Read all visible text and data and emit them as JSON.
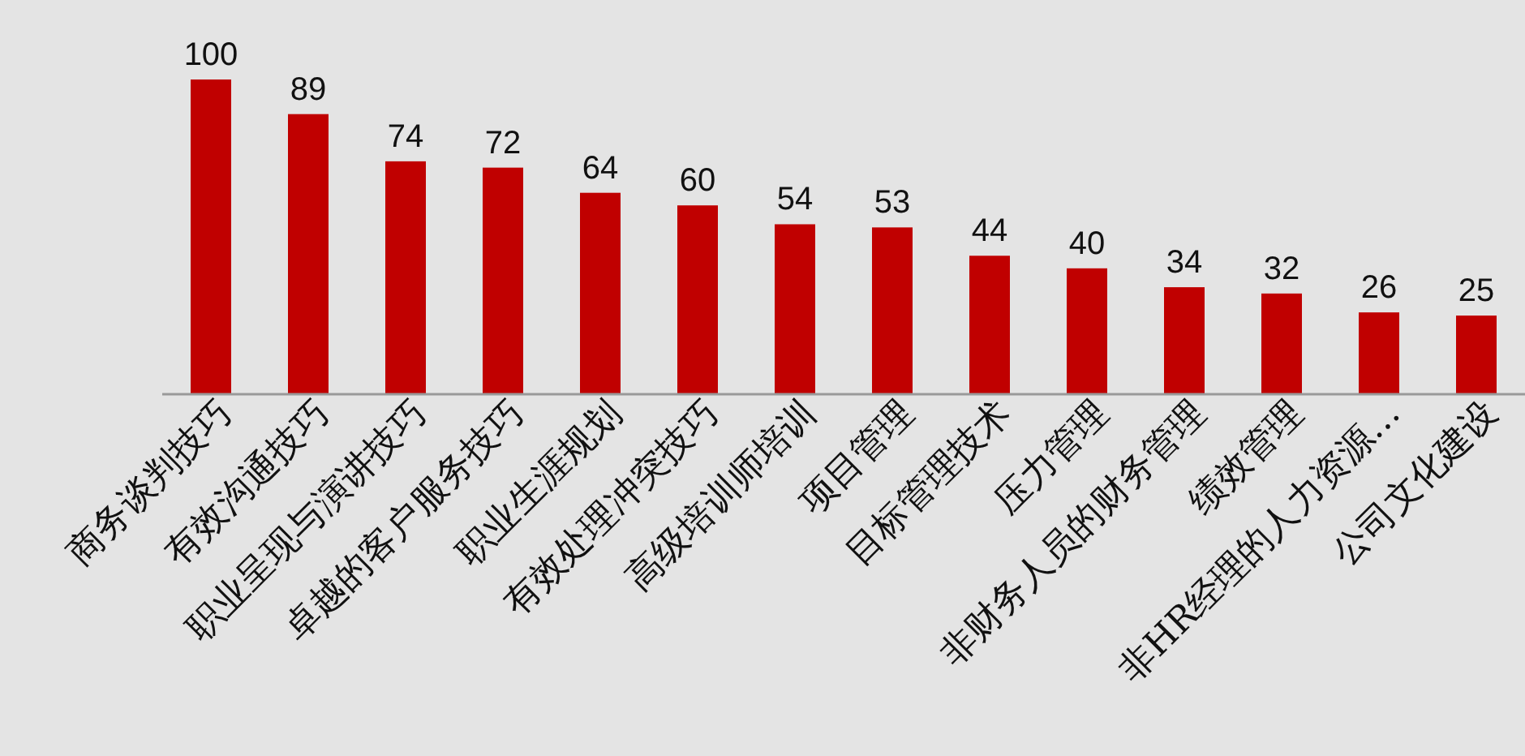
{
  "chart_data": {
    "type": "bar",
    "categories": [
      "商务谈判技巧",
      "有效沟通技巧",
      "职业呈现与演讲技巧",
      "卓越的客户服务技巧",
      "职业生涯规划",
      "有效处理冲突技巧",
      "高级培训师培训",
      "项目管理",
      "目标管理技术",
      "压力管理",
      "非财务人员的财务管理",
      "绩效管理",
      "非HR经理的人力资源…",
      "公司文化建设"
    ],
    "values": [
      100,
      89,
      74,
      72,
      64,
      60,
      54,
      53,
      44,
      40,
      34,
      32,
      26,
      25
    ],
    "color": "#c00000",
    "data_labels": true
  }
}
